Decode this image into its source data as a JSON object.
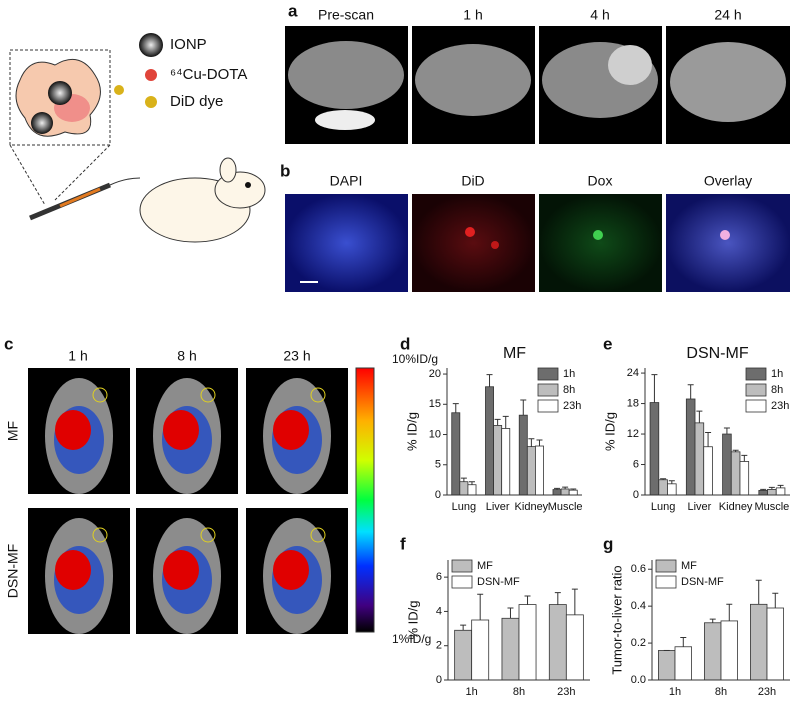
{
  "panel_labels": [
    "a",
    "b",
    "c",
    "d",
    "e",
    "f",
    "g"
  ],
  "schematic": {
    "legend": [
      "IONP",
      "⁶⁴Cu-DOTA",
      "DiD dye"
    ]
  },
  "mri": {
    "times": [
      "Pre-scan",
      "1 h",
      "4 h",
      "24 h"
    ]
  },
  "microscopy": {
    "channels": [
      "DAPI",
      "DiD",
      "Dox",
      "Overlay"
    ]
  },
  "pet": {
    "times": [
      "1 h",
      "8 h",
      "23 h"
    ],
    "rows": [
      "MF",
      "DSN-MF"
    ],
    "colorbar": {
      "max": "10%ID/g",
      "min": "1%ID/g"
    }
  },
  "chart_data": [
    {
      "type": "bar",
      "title": "MF",
      "y_label": "% ID/g",
      "categories": [
        "Lung",
        "Liver",
        "Kidney",
        "Muscle"
      ],
      "series": [
        {
          "name": "1h",
          "color": "#6d6d6d",
          "values": [
            13.6,
            17.9,
            13.2,
            0.9
          ],
          "errors": [
            1.5,
            2.0,
            2.5,
            0.2
          ]
        },
        {
          "name": "8h",
          "color": "#bdbdbd",
          "values": [
            2.2,
            11.5,
            8.0,
            1.0
          ],
          "errors": [
            0.6,
            1.0,
            1.3,
            0.3
          ]
        },
        {
          "name": "23h",
          "color": "#ffffff",
          "values": [
            1.7,
            11.0,
            8.1,
            0.8
          ],
          "errors": [
            0.5,
            2.0,
            1.0,
            0.2
          ]
        }
      ],
      "ylim": [
        0,
        21
      ],
      "yticks": [
        0,
        5,
        10,
        15,
        20
      ],
      "legend": "upper right"
    },
    {
      "type": "bar",
      "title": "DSN-MF",
      "y_label": "% ID/g",
      "categories": [
        "Lung",
        "Liver",
        "Kidney",
        "Muscle"
      ],
      "series": [
        {
          "name": "1h",
          "color": "#6d6d6d",
          "values": [
            18.2,
            18.9,
            12.0,
            0.9
          ],
          "errors": [
            5.5,
            2.8,
            1.2,
            0.2
          ]
        },
        {
          "name": "8h",
          "color": "#bdbdbd",
          "values": [
            3.0,
            14.2,
            8.5,
            1.1
          ],
          "errors": [
            0.2,
            2.3,
            0.3,
            0.4
          ]
        },
        {
          "name": "23h",
          "color": "#ffffff",
          "values": [
            2.2,
            9.5,
            6.6,
            1.4
          ],
          "errors": [
            0.6,
            2.8,
            1.2,
            0.5
          ]
        }
      ],
      "ylim": [
        0,
        25
      ],
      "yticks": [
        0,
        6,
        12,
        18,
        24
      ],
      "legend": "upper right"
    },
    {
      "type": "bar",
      "y_label": "% ID/g",
      "categories": [
        "1h",
        "8h",
        "23h"
      ],
      "series": [
        {
          "name": "MF",
          "color": "#bdbdbd",
          "values": [
            2.9,
            3.6,
            4.4
          ],
          "errors": [
            0.3,
            0.6,
            0.7
          ]
        },
        {
          "name": "DSN-MF",
          "color": "#ffffff",
          "values": [
            3.5,
            4.4,
            3.8
          ],
          "errors": [
            1.5,
            0.5,
            1.5
          ]
        }
      ],
      "ylim": [
        0,
        7
      ],
      "yticks": [
        0,
        2,
        4,
        6
      ],
      "legend": "upper left"
    },
    {
      "type": "bar",
      "y_label": "Tumor-to-liver ratio",
      "categories": [
        "1h",
        "8h",
        "23h"
      ],
      "series": [
        {
          "name": "MF",
          "color": "#bdbdbd",
          "values": [
            0.16,
            0.31,
            0.41
          ],
          "errors": [
            0,
            0.02,
            0.13
          ]
        },
        {
          "name": "DSN-MF",
          "color": "#ffffff",
          "values": [
            0.18,
            0.32,
            0.39
          ],
          "errors": [
            0.05,
            0.09,
            0.08
          ]
        }
      ],
      "ylim": [
        0,
        0.65
      ],
      "yticks": [
        {
          "value": 0,
          "label": "0.0"
        },
        0.2,
        0.4,
        0.6
      ],
      "legend": "upper left"
    }
  ]
}
